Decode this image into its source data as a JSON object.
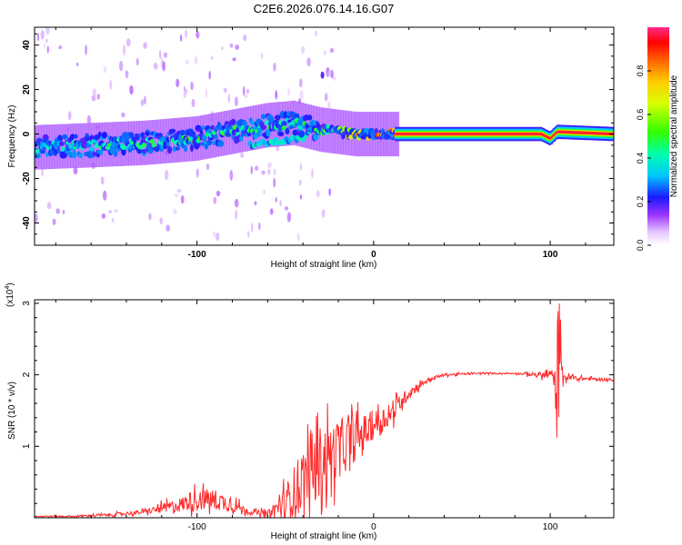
{
  "title": "C2E6.2026.076.14.16.G07",
  "chart_data": [
    {
      "type": "heatmap",
      "xlabel": "Height of straight line (km)",
      "ylabel": "Frequency (Hz)",
      "xlim": [
        -192,
        136
      ],
      "ylim": [
        -50,
        48
      ],
      "x_ticks": [
        -100,
        0,
        100
      ],
      "y_ticks": [
        40,
        20,
        0,
        -20,
        -40
      ],
      "x_tick_labels": [
        "-100",
        "0",
        "100"
      ],
      "y_tick_labels": [
        "40",
        "20",
        "0",
        "-20",
        "-40"
      ],
      "colorbar": {
        "label": "Normalized spectral amplitude",
        "range": [
          0,
          1
        ],
        "ticks": [
          0.0,
          0.2,
          0.4,
          0.6,
          0.8
        ],
        "tick_labels": [
          "0.0",
          "0.2",
          "0.4",
          "0.6",
          "0.8"
        ]
      },
      "ridge": {
        "x": [
          -192,
          -160,
          -130,
          -100,
          -80,
          -60,
          -45,
          -30,
          -20,
          -10,
          0,
          10,
          20,
          60,
          95,
          100,
          104,
          136
        ],
        "freq": [
          -6,
          -5,
          -4,
          -2,
          1,
          4,
          5,
          2,
          1,
          0,
          0,
          0,
          0,
          0,
          0,
          -2,
          1,
          0
        ],
        "amplitude": [
          0.35,
          0.4,
          0.4,
          0.45,
          0.45,
          0.45,
          0.4,
          0.45,
          0.6,
          0.75,
          0.75,
          0.8,
          0.97,
          0.97,
          0.97,
          0.7,
          0.9,
          0.97
        ]
      },
      "secondary_ridge": {
        "x": [
          -70,
          -60,
          -50,
          -40,
          -32
        ],
        "freq": [
          -5,
          -4,
          -3,
          -2,
          5
        ]
      }
    },
    {
      "type": "line",
      "xlabel": "Height of straight line (km)",
      "ylabel": "SNR (10 * v/v)",
      "y_scale_label": "(x10",
      "y_scale_exponent": "4",
      "xlim": [
        -192,
        136
      ],
      "ylim": [
        0,
        3.05
      ],
      "x_ticks": [
        -100,
        0,
        100
      ],
      "y_ticks": [
        1,
        2,
        3
      ],
      "x_tick_labels": [
        "-100",
        "0",
        "100"
      ],
      "y_tick_labels": [
        "1",
        "2",
        "3"
      ],
      "series": [
        {
          "name": "SNR",
          "color": "#ff2a2a",
          "x": [
            -192,
            -170,
            -150,
            -130,
            -110,
            -100,
            -90,
            -80,
            -70,
            -60,
            -50,
            -40,
            -30,
            -20,
            -10,
            0,
            10,
            20,
            30,
            40,
            60,
            80,
            95,
            100,
            103,
            105,
            108,
            115,
            125,
            136
          ],
          "y": [
            0.02,
            0.02,
            0.04,
            0.08,
            0.18,
            0.26,
            0.25,
            0.18,
            0.08,
            0.05,
            0.2,
            0.55,
            0.8,
            0.95,
            1.1,
            1.3,
            1.45,
            1.75,
            1.92,
            2.0,
            2.02,
            2.02,
            2.0,
            2.0,
            1.95,
            2.0,
            1.97,
            1.95,
            1.94,
            1.93
          ],
          "noise": [
            0.01,
            0.01,
            0.02,
            0.03,
            0.1,
            0.15,
            0.15,
            0.1,
            0.03,
            0.05,
            0.25,
            0.45,
            0.5,
            0.4,
            0.3,
            0.2,
            0.15,
            0.08,
            0.03,
            0.02,
            0.01,
            0.01,
            0.04,
            0.07,
            0.15,
            0.4,
            0.08,
            0.03,
            0.02,
            0.02
          ]
        }
      ]
    }
  ]
}
